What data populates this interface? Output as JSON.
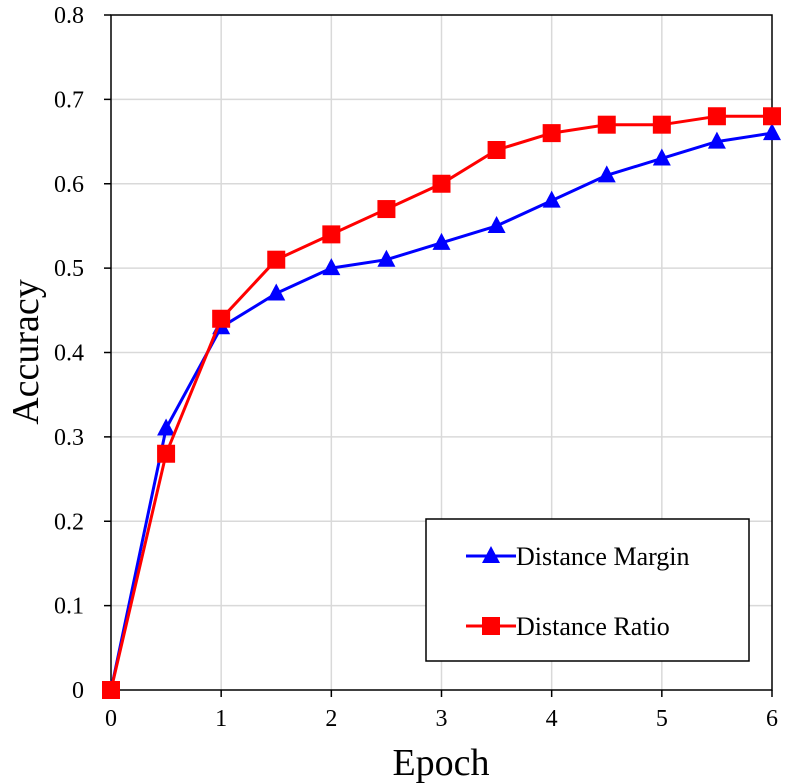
{
  "chart_data": {
    "type": "line",
    "title": "",
    "xlabel": "Epoch",
    "ylabel": "Accuracy",
    "xlim": [
      0,
      6
    ],
    "ylim": [
      0,
      0.8
    ],
    "x_ticks": [
      "0",
      "1",
      "2",
      "3",
      "4",
      "5",
      "6"
    ],
    "y_ticks": [
      "0",
      "0.1",
      "0.2",
      "0.3",
      "0.4",
      "0.5",
      "0.6",
      "0.7",
      "0.8"
    ],
    "grid": true,
    "legend_position": "bottom-right",
    "x": [
      0,
      0.5,
      1,
      1.5,
      2,
      2.5,
      3,
      3.5,
      4,
      4.5,
      5,
      5.5,
      6
    ],
    "series": [
      {
        "name": "Distance Margin",
        "color": "#0000ff",
        "marker": "triangle",
        "values": [
          0,
          0.31,
          0.43,
          0.47,
          0.5,
          0.51,
          0.53,
          0.55,
          0.58,
          0.61,
          0.63,
          0.65,
          0.66
        ]
      },
      {
        "name": "Distance Ratio",
        "color": "#ff0000",
        "marker": "square",
        "values": [
          0,
          0.28,
          0.44,
          0.51,
          0.54,
          0.57,
          0.6,
          0.64,
          0.66,
          0.67,
          0.67,
          0.68,
          0.68
        ]
      }
    ]
  }
}
